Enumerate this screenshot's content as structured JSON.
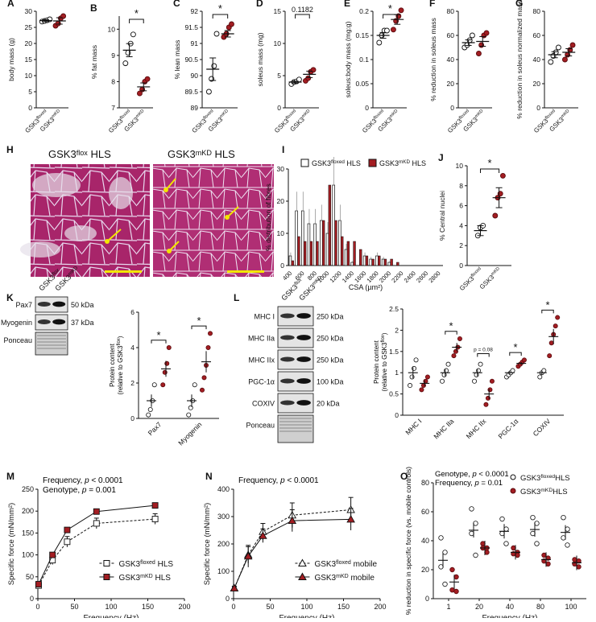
{
  "colors": {
    "floxed": "#ffffff",
    "mkd": "#a31d22",
    "edge": "#111111",
    "histo": "#b2296b",
    "scalebar": "#f2e600"
  },
  "panels": {
    "A": {
      "letter": "A",
      "ylabel": "body mass (g)",
      "ylim": [
        0,
        30
      ],
      "ticks": [
        0,
        5,
        10,
        15,
        20,
        25,
        30
      ],
      "groups": [
        {
          "label": "GSK3",
          "sup": "floxed",
          "vals": [
            26.8,
            27.0,
            27.2,
            27.5
          ],
          "mean": 27.1,
          "sem": 0.3
        },
        {
          "label": "GSK3",
          "sup": "mKD",
          "vals": [
            25.5,
            26.2,
            27.8,
            28.5
          ],
          "mean": 27.0,
          "sem": 1.0
        }
      ]
    },
    "B": {
      "letter": "B",
      "ylabel": "% fat mass",
      "ylim": [
        7,
        10.5
      ],
      "ticks": [
        7,
        8,
        9,
        10
      ],
      "sig": "*",
      "groups": [
        {
          "label": "GSK3",
          "sup": "floxed",
          "vals": [
            8.7,
            9.1,
            9.45,
            9.8
          ],
          "mean": 9.2,
          "sem": 0.25
        },
        {
          "label": "GSK3",
          "sup": "mKD",
          "vals": [
            7.55,
            7.7,
            8.0,
            8.1
          ],
          "mean": 7.8,
          "sem": 0.15
        }
      ]
    },
    "C": {
      "letter": "C",
      "ylabel": "% lean mass",
      "ylim": [
        89,
        92
      ],
      "ticks": [
        89,
        89.5,
        90,
        90.5,
        91,
        91.5,
        92
      ],
      "sig": "*",
      "groups": [
        {
          "label": "GSK3",
          "sup": "floxed",
          "vals": [
            89.5,
            89.9,
            90.3,
            91.3
          ],
          "mean": 90.2,
          "sem": 0.35
        },
        {
          "label": "GSK3",
          "sup": "mKD",
          "vals": [
            91.2,
            91.3,
            91.5,
            91.6
          ],
          "mean": 91.3,
          "sem": 0.1
        }
      ]
    },
    "D": {
      "letter": "D",
      "ylabel": "soleus mass (mg)",
      "ylim": [
        0,
        15
      ],
      "ticks": [
        0,
        5,
        10,
        15
      ],
      "pval": "0.1182",
      "groups": [
        {
          "label": "GSK3",
          "sup": "floxed",
          "vals": [
            3.7,
            4.0,
            4.1,
            4.4
          ],
          "mean": 4.0,
          "sem": 0.15
        },
        {
          "label": "GSK3",
          "sup": "mKD",
          "vals": [
            4.2,
            4.6,
            5.6,
            5.9
          ],
          "mean": 5.2,
          "sem": 0.5
        }
      ]
    },
    "E": {
      "letter": "E",
      "ylabel": "soleus:body mass (mg:g)",
      "ylim": [
        0,
        0.2
      ],
      "ticks": [
        0,
        0.05,
        0.1,
        0.15,
        0.2
      ],
      "sig": "*",
      "groups": [
        {
          "label": "GSK3",
          "sup": "floxed",
          "vals": [
            0.135,
            0.15,
            0.16,
            0.16
          ],
          "mean": 0.15,
          "sem": 0.006
        },
        {
          "label": "GSK3",
          "sup": "mKD",
          "vals": [
            0.162,
            0.18,
            0.19,
            0.202
          ],
          "mean": 0.183,
          "sem": 0.01
        }
      ]
    },
    "F": {
      "letter": "F",
      "ylabel": "% reduction in soleus mass",
      "ylim": [
        0,
        80
      ],
      "ticks": [
        0,
        20,
        40,
        60,
        80
      ],
      "groups": [
        {
          "label": "GSK3",
          "sup": "floxed",
          "vals": [
            50,
            52,
            56,
            60
          ],
          "mean": 54,
          "sem": 2.3
        },
        {
          "label": "GSK3",
          "sup": "mKD",
          "vals": [
            45,
            52,
            60,
            62
          ],
          "mean": 55,
          "sem": 4
        }
      ]
    },
    "G": {
      "letter": "G",
      "ylabel": "% reduction in soleus normalized mass",
      "ylim": [
        0,
        80
      ],
      "ticks": [
        0,
        20,
        40,
        60,
        80
      ],
      "groups": [
        {
          "label": "GSK3",
          "sup": "floxed",
          "vals": [
            38,
            43,
            46,
            50
          ],
          "mean": 44,
          "sem": 2.5
        },
        {
          "label": "GSK3",
          "sup": "mKD",
          "vals": [
            40,
            44,
            48,
            52
          ],
          "mean": 46,
          "sem": 3
        }
      ]
    },
    "J": {
      "letter": "J",
      "ylabel": "% Central nuclei",
      "ylim": [
        0,
        10
      ],
      "ticks": [
        0,
        2,
        4,
        6,
        8,
        10
      ],
      "sig": "*",
      "groups": [
        {
          "label": "GSK3",
          "sup": "floxed",
          "vals": [
            3.0,
            3.8,
            4.0
          ],
          "mean": 3.5,
          "sem": 0.5
        },
        {
          "label": "GSK3",
          "sup": "mKD",
          "vals": [
            5.0,
            6.8,
            7.2,
            9.0
          ],
          "mean": 6.8,
          "sem": 1.0
        }
      ]
    }
  },
  "histology": {
    "letter": "H",
    "left_title": "GSK3",
    "left_sup": "flox",
    "left_suffix": " HLS",
    "right_title": "GSK3",
    "right_sup": "mKD",
    "right_suffix": " HLS"
  },
  "chart_data": [
    {
      "type": "bar",
      "panel": "I",
      "ylabel": "% distribution of fibres",
      "xlabel": "CSA (µm²)",
      "ylim": [
        0,
        30
      ],
      "categories": [
        "400",
        "500",
        "600",
        "700",
        "800",
        "900",
        "1000",
        "1100",
        "1200",
        "1300",
        "1400",
        "1500",
        "1600",
        "1700",
        "1800",
        "1900",
        "2000",
        "2100",
        "2200",
        "2300",
        "2400",
        "2500",
        "2600",
        "2700",
        "2800"
      ],
      "series": [
        {
          "name": "GSK3 floxed HLS",
          "values": [
            3,
            17,
            17,
            13,
            13,
            14,
            10,
            25,
            14,
            5,
            1,
            0,
            3,
            2,
            3,
            2,
            1,
            0,
            0,
            0,
            0,
            0,
            0,
            0,
            0
          ]
        },
        {
          "name": "GSK3 mKD HLS",
          "values": [
            1.5,
            9,
            7.5,
            7.5,
            7.5,
            14,
            25,
            14,
            9,
            7.5,
            7.5,
            5,
            3,
            2,
            3,
            2,
            2,
            1,
            0,
            0,
            0,
            0,
            0,
            0,
            0
          ]
        }
      ]
    },
    {
      "type": "line",
      "panel": "M",
      "ylabel": "Specific force (mN/mm²)",
      "xlabel": "Frequency (Hz)",
      "xlim": [
        0,
        200
      ],
      "ylim": [
        0,
        250
      ],
      "x": [
        1,
        20,
        40,
        80,
        160
      ],
      "series": [
        {
          "name": "GSK3 floxed HLS",
          "values": [
            30,
            88,
            130,
            172,
            182
          ],
          "err": [
            5,
            10,
            12,
            12,
            12
          ]
        },
        {
          "name": "GSK3 mKD HLS",
          "values": [
            33,
            100,
            157,
            199,
            213
          ],
          "err": [
            0,
            0,
            0,
            0,
            0
          ]
        }
      ]
    },
    {
      "type": "line",
      "panel": "N",
      "ylabel": "Specific force (mN/mm²)",
      "xlabel": "Frequency (Hz)",
      "xlim": [
        0,
        200
      ],
      "ylim": [
        0,
        400
      ],
      "x": [
        1,
        20,
        40,
        80,
        160
      ],
      "series": [
        {
          "name": "GSK3 floxed mobile",
          "values": [
            38,
            160,
            245,
            305,
            325
          ],
          "err": [
            8,
            30,
            30,
            45,
            45
          ]
        },
        {
          "name": "GSK3 mKD mobile",
          "values": [
            38,
            155,
            230,
            285,
            290
          ],
          "err": [
            5,
            40,
            25,
            40,
            40
          ]
        }
      ]
    },
    {
      "type": "scatter",
      "panel": "O",
      "ylabel": "% reduction in specific force (vs. mobile controls)",
      "xlabel": "Frequency (Hz)",
      "ylim": [
        0,
        80
      ],
      "categories": [
        "1",
        "20",
        "40",
        "80",
        "100"
      ],
      "series": [
        {
          "name": "GSK3 floxed HLS",
          "values": [
            [
              42,
              32,
              22,
              10
            ],
            [
              62,
              52,
              45,
              30
            ],
            [
              55,
              48,
              45,
              38
            ],
            [
              56,
              52,
              45,
              38
            ],
            [
              56,
              48,
              42,
              37
            ]
          ]
        },
        {
          "name": "GSK3 mKD HLS",
          "values": [
            [
              20,
              15,
              6,
              5
            ],
            [
              38,
              35,
              35,
              32
            ],
            [
              35,
              32,
              31,
              30
            ],
            [
              30,
              28,
              26,
              24
            ],
            [
              27,
              26,
              24,
              22
            ]
          ]
        }
      ]
    }
  ],
  "annot": {
    "I": {
      "letter": "I",
      "leg1": "GSK3",
      "leg1sup": "floxed",
      "leg1suf": " HLS",
      "leg2": "GSK3",
      "leg2sup": "mKD",
      "leg2suf": " HLS"
    },
    "M": {
      "letter": "M",
      "line1": "Frequency, ",
      "p1": "p",
      "line1b": " < 0.0001",
      "line2": "Genotype, ",
      "p2": "p",
      "line2b": " = 0.001",
      "leg1": "GSK3",
      "leg1sup": "floxed",
      "leg1suf": " HLS",
      "leg2": "GSK3",
      "leg2sup": "mKD",
      "leg2suf": " HLS"
    },
    "N": {
      "letter": "N",
      "line1": "Frequency, ",
      "p1": "p",
      "line1b": " < 0.0001",
      "leg1": "GSK3",
      "leg1sup": "floxed",
      "leg1suf": " mobile",
      "leg2": "GSK3",
      "leg2sup": "mKD",
      "leg2suf": " mobile"
    },
    "O": {
      "letter": "O",
      "line1": "Genotype, ",
      "p1": "p",
      "line1b": " < 0.0001",
      "line2": "Frequency, ",
      "p2": "p",
      "line2b": " = 0.01",
      "leg1": "GSK3",
      "leg1sup": "floxed",
      "leg1suf": "HLS",
      "leg2": "GSK3",
      "leg2sup": "mKD",
      "leg2suf": "HLS"
    }
  },
  "blots": {
    "K": {
      "letter": "K",
      "lanes": [
        "GSK3",
        "GSK3"
      ],
      "lanesup": [
        "flox",
        "mKD"
      ],
      "rows": [
        "Pax7",
        "Myogenin",
        "Ponceau"
      ],
      "kda": [
        "50 kDa",
        "37 kDa"
      ],
      "ylabel": "Protein content",
      "ylabel2": "(relative to GSK3",
      "ylabel2sup": "flox",
      "ylabel2end": ")",
      "ylim": [
        0,
        6
      ],
      "ticks": [
        0,
        2,
        4,
        6
      ],
      "cats": [
        "Pax7",
        "Myogenin"
      ],
      "flox": [
        [
          0.2,
          0.5,
          1.0,
          1.9
        ],
        [
          0.2,
          0.6,
          1.0,
          1.9
        ]
      ],
      "floxmean": [
        1.0,
        1.0
      ],
      "floxsem": [
        0.35,
        0.35
      ],
      "mkd": [
        [
          1.9,
          2.6,
          3.1,
          4.0
        ],
        [
          1.6,
          2.3,
          3.0,
          4.0,
          4.8
        ]
      ],
      "mkdmean": [
        2.8,
        3.2
      ],
      "mkdsem": [
        0.45,
        0.6
      ]
    },
    "L": {
      "letter": "L",
      "lanes": [
        "GSK3",
        "GSK3"
      ],
      "lanesup": [
        "flox",
        "mKD"
      ],
      "rows": [
        "MHC I",
        "MHC IIa",
        "MHC IIx",
        "PGC-1α",
        "COXIV",
        "Ponceau"
      ],
      "kda": [
        "250 kDa",
        "250 kDa",
        "250 kDa",
        "100 kDa",
        "20 kDa"
      ],
      "ylabel": "Protein content",
      "ylabel2": "(relative to GSK3",
      "ylabel2sup": "flox",
      "ylabel2end": ")",
      "ylim": [
        0,
        2.5
      ],
      "ticks": [
        0,
        0.5,
        1,
        1.5,
        2,
        2.5
      ],
      "cats": [
        "MHC I",
        "MHC IIa",
        "MHC IIx",
        "PGC-1α",
        "COXIV"
      ],
      "pnote": "p = 0.08",
      "flox": [
        [
          0.7,
          0.9,
          1.1,
          1.3
        ],
        [
          0.8,
          0.95,
          1.05,
          1.2
        ],
        [
          0.8,
          0.95,
          1.05,
          1.2
        ],
        [
          0.9,
          0.95,
          1.0,
          1.05
        ],
        [
          0.9,
          1.0,
          1.05
        ]
      ],
      "floxmean": [
        1.0,
        1.0,
        1.0,
        1.0,
        1.0
      ],
      "floxsem": [
        0.13,
        0.08,
        0.08,
        0.03,
        0.05
      ],
      "mkd": [
        [
          0.6,
          0.7,
          0.8,
          0.9
        ],
        [
          1.4,
          1.5,
          1.6,
          1.8
        ],
        [
          0.25,
          0.4,
          0.6,
          0.8
        ],
        [
          1.15,
          1.2,
          1.25,
          1.3
        ],
        [
          1.4,
          1.7,
          1.9,
          2.1,
          2.3
        ]
      ],
      "mkdmean": [
        0.75,
        1.6,
        0.5,
        1.22,
        1.85
      ],
      "mkdsem": [
        0.07,
        0.1,
        0.12,
        0.03,
        0.18
      ],
      "sig": [
        false,
        true,
        false,
        true,
        true
      ]
    }
  }
}
